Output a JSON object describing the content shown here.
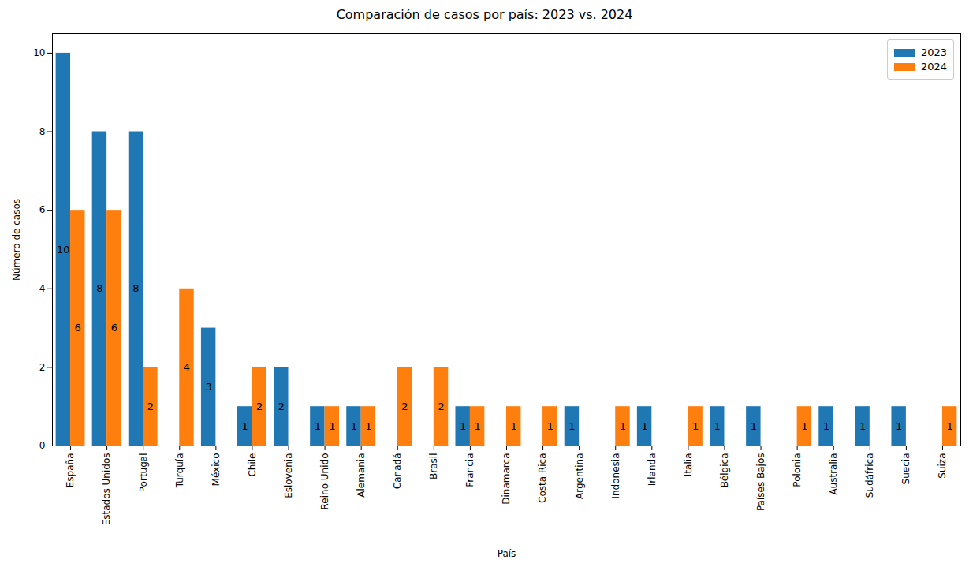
{
  "chart_data": {
    "type": "bar",
    "title": "Comparación de casos por país: 2023 vs. 2024",
    "x_label": "País",
    "y_label": "Número de casos",
    "categories": [
      "España",
      "Estados Unidos",
      "Portugal",
      "Turquía",
      "México",
      "Chile",
      "Eslovenia",
      "Reino Unido",
      "Alemania",
      "Canadá",
      "Brasil",
      "Francia",
      "Dinamarca",
      "Costa Rica",
      "Argentina",
      "Indonesia",
      "Irlanda",
      "Italia",
      "Bélgica",
      "Países Bajos",
      "Polonia",
      "Australia",
      "Sudáfrica",
      "Suecia",
      "Suiza"
    ],
    "series": [
      {
        "name": "2023",
        "color": "#1f77b4",
        "values": [
          10,
          8,
          8,
          null,
          3,
          1,
          2,
          1,
          1,
          null,
          null,
          1,
          null,
          null,
          1,
          null,
          1,
          null,
          1,
          1,
          null,
          1,
          1,
          1,
          null
        ]
      },
      {
        "name": "2024",
        "color": "#ff7f0e",
        "values": [
          6,
          6,
          2,
          4,
          null,
          2,
          null,
          1,
          1,
          2,
          2,
          1,
          1,
          1,
          null,
          1,
          null,
          1,
          null,
          null,
          1,
          null,
          null,
          null,
          1
        ]
      }
    ],
    "ylim": [
      0,
      10.5
    ],
    "yticks": [
      0,
      2,
      4,
      6,
      8,
      10
    ],
    "grid": false,
    "legend": "upper right",
    "data_labels": true
  }
}
